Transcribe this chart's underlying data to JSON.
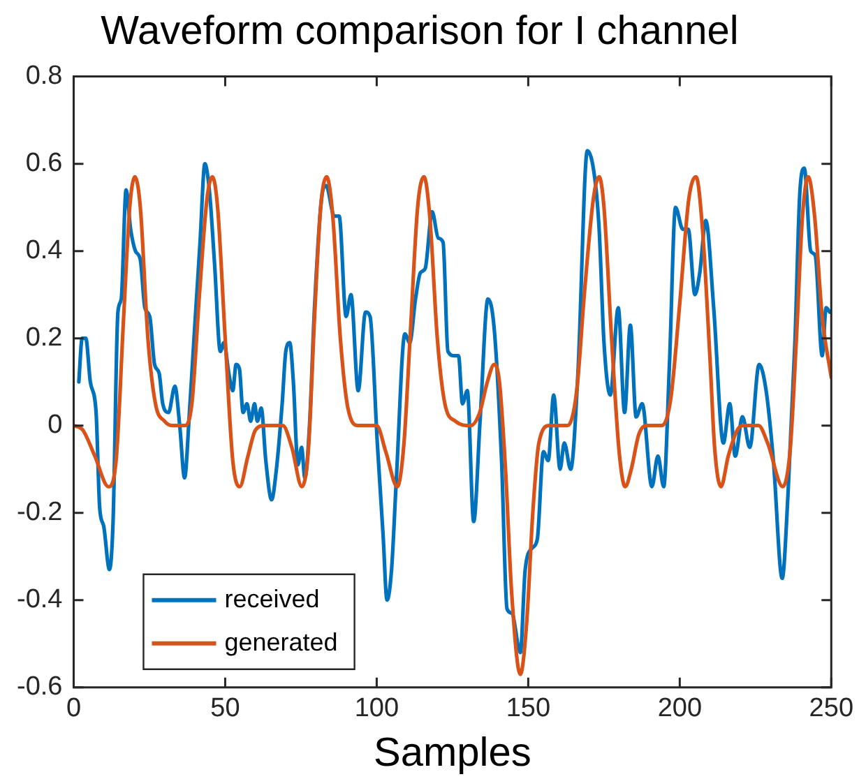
{
  "chart_data": {
    "type": "line",
    "title": "Waveform comparison for I channel",
    "xlabel": "Samples",
    "xlim": [
      0,
      250
    ],
    "xticks": [
      0,
      50,
      100,
      150,
      200,
      250
    ],
    "ylim": [
      -0.6,
      0.8
    ],
    "yticks": [
      -0.6,
      -0.4,
      -0.2,
      0,
      0.2,
      0.4,
      0.6,
      0.8
    ],
    "grid": false,
    "legend": "bottom left",
    "marker": "none",
    "line_style": "solid",
    "series": [
      {
        "name": "received",
        "color": "#0072bd",
        "x": [
          1.7,
          2.8,
          4,
          5.5,
          7.4,
          8.6,
          9.9,
          11.8,
          13,
          14.6,
          15.7,
          17.3,
          18.8,
          20.4,
          22,
          23.5,
          25.1,
          26.7,
          28.2,
          29.4,
          31.3,
          33.4,
          35,
          36.6,
          38.2,
          39.8,
          41.7,
          43.3,
          44.9,
          46.5,
          48.4,
          49.6,
          51.2,
          52.5,
          53.6,
          54.7,
          55.9,
          57.2,
          58.4,
          59.7,
          60.6,
          61.9,
          63.4,
          65.3,
          66.9,
          68.8,
          70,
          71.3,
          72.5,
          74,
          75.2,
          76.3,
          77.9,
          79.4,
          81.8,
          83.3,
          86,
          87.6,
          89.9,
          91.5,
          93.9,
          96.3,
          97.8,
          100.2,
          102.1,
          103.4,
          104.9,
          106.5,
          109.3,
          110.9,
          112.8,
          114.4,
          116,
          118.3,
          120.3,
          121.9,
          123.5,
          125.7,
          127,
          128.3,
          129.9,
          132,
          134.1,
          136.7,
          138.8,
          141.2,
          143,
          144.6,
          147.4,
          149,
          151.4,
          153,
          155,
          156.6,
          158.4,
          160.5,
          161.9,
          164,
          166.4,
          169.5,
          171.9,
          173.4,
          175,
          177.1,
          179.7,
          181.8,
          183.7,
          185.6,
          187.6,
          190.8,
          192.8,
          194.7,
          196.6,
          198.6,
          201,
          202.8,
          205,
          206.6,
          208.6,
          211.2,
          214.4,
          216.5,
          218.3,
          220.7,
          223.1,
          226.2,
          228.5,
          230.9,
          233.8,
          235.7,
          238,
          239.6,
          241.1,
          243.2,
          244.7,
          247,
          248.3,
          249.5
        ],
        "values": [
          0.1,
          0.2,
          0.2,
          0.1,
          0.03,
          -0.19,
          -0.23,
          -0.33,
          -0.22,
          0.26,
          0.29,
          0.54,
          0.45,
          0.4,
          0.38,
          0.27,
          0.25,
          0.14,
          0.12,
          0.05,
          0.03,
          0.09,
          0,
          -0.12,
          0.03,
          0.21,
          0.42,
          0.6,
          0.53,
          0.37,
          0.17,
          0.19,
          0.12,
          0.08,
          0.14,
          0.13,
          0.03,
          0.05,
          0.01,
          0.05,
          0.01,
          0.04,
          -0.08,
          -0.17,
          -0.1,
          0.05,
          0.17,
          0.19,
          0.1,
          -0.09,
          -0.05,
          -0.12,
          0.01,
          0.26,
          0.52,
          0.55,
          0.48,
          0.48,
          0.25,
          0.3,
          0.08,
          0.26,
          0.25,
          -0.04,
          -0.25,
          -0.4,
          -0.33,
          -0.12,
          0.21,
          0.19,
          0.29,
          0.35,
          0.36,
          0.49,
          0.43,
          0.42,
          0.17,
          0.16,
          0.16,
          0.05,
          0.08,
          -0.22,
          0.01,
          0.29,
          0.22,
          -0.08,
          -0.42,
          -0.43,
          -0.52,
          -0.33,
          -0.28,
          -0.26,
          -0.06,
          -0.08,
          0.07,
          -0.1,
          -0.04,
          -0.1,
          0.12,
          0.63,
          0.57,
          0.45,
          0.19,
          0.07,
          0.27,
          0.03,
          0.23,
          0.02,
          0.05,
          -0.14,
          -0.07,
          -0.14,
          0.14,
          0.5,
          0.45,
          0.45,
          0.3,
          0.35,
          0.47,
          0.27,
          -0.04,
          0.05,
          -0.07,
          0.02,
          -0.05,
          0.14,
          0.08,
          -0.08,
          -0.35,
          -0.16,
          0.19,
          0.53,
          0.59,
          0.4,
          0.39,
          0.16,
          0.27,
          0.26
        ]
      },
      {
        "name": "generated",
        "color": "#d95319",
        "x": [
          0,
          3,
          7,
          11.5,
          14,
          16.5,
          18.5,
          20.2,
          22,
          24.5,
          27,
          30,
          32.5,
          36.5,
          39,
          41.5,
          44,
          45.8,
          47.5,
          50,
          52.5,
          54.8,
          57.5,
          60,
          63,
          69,
          72,
          75.3,
          77.5,
          79.5,
          81.5,
          83.5,
          85.5,
          88,
          90.5,
          94,
          100,
          103,
          106.8,
          109,
          111,
          113.5,
          115.6,
          117.5,
          120,
          122.5,
          126,
          131,
          134,
          136.5,
          138.8,
          140.5,
          142.5,
          144.5,
          147.4,
          149.5,
          151.5,
          153.5,
          157,
          163,
          166,
          168.5,
          171.5,
          173.4,
          175,
          177.5,
          180,
          182,
          184,
          186.5,
          189,
          194,
          197,
          200,
          203,
          205.4,
          207.5,
          210,
          211.5,
          213.6,
          216,
          219,
          221,
          226,
          229,
          234,
          236.5,
          238.5,
          240.5,
          242.4,
          244.5,
          247,
          250
        ],
        "values": [
          0,
          -0.01,
          -0.07,
          -0.14,
          -0.08,
          0.25,
          0.5,
          0.57,
          0.5,
          0.2,
          0.05,
          0.01,
          0,
          0,
          0.05,
          0.3,
          0.52,
          0.57,
          0.5,
          0.2,
          -0.08,
          -0.14,
          -0.07,
          -0.01,
          0,
          0,
          -0.05,
          -0.14,
          -0.05,
          0.25,
          0.5,
          0.57,
          0.48,
          0.2,
          0.04,
          0,
          0,
          -0.06,
          -0.14,
          -0.04,
          0.2,
          0.5,
          0.57,
          0.48,
          0.2,
          0.05,
          0.01,
          0,
          0.03,
          0.1,
          0.14,
          0.1,
          -0.1,
          -0.38,
          -0.57,
          -0.45,
          -0.2,
          -0.04,
          0,
          0,
          0.08,
          0.3,
          0.52,
          0.57,
          0.5,
          0.2,
          -0.06,
          -0.14,
          -0.1,
          -0.02,
          0,
          0,
          0.06,
          0.28,
          0.52,
          0.57,
          0.45,
          0.15,
          -0.05,
          -0.14,
          -0.07,
          -0.01,
          0,
          0,
          -0.04,
          -0.14,
          -0.05,
          0.2,
          0.48,
          0.57,
          0.48,
          0.25,
          0.11
        ]
      }
    ]
  }
}
